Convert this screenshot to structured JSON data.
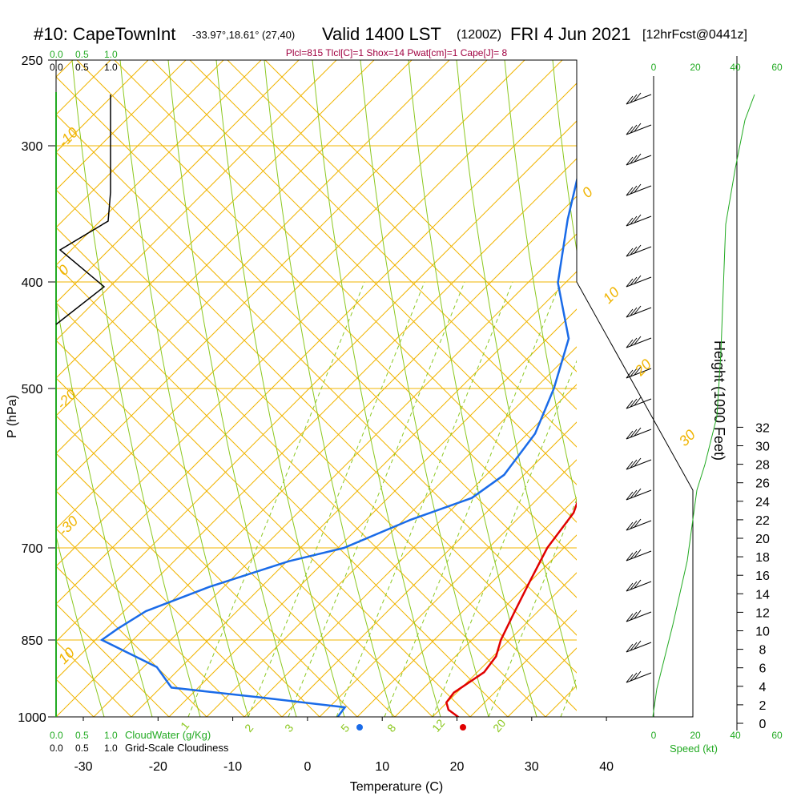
{
  "header": {
    "station": "#10: CapeTownInt",
    "coords": "-33.97°,18.61° (27,40)",
    "valid": "Valid 1400 LST",
    "utc": "(1200Z)",
    "date": "FRI 4 Jun 2021",
    "forecast": "[12hrFcst@0441z]",
    "indices": "Plcl=815 Tlcl[C]=1 Shox=14 Pwat[cm]=1 Cape[J]= 8"
  },
  "colors": {
    "isobar": "#f0b400",
    "dry_adiabat": "#8cc820",
    "mixing_ratio": "#8cc820",
    "temperature": "#e00000",
    "dewpoint": "#1a6be8",
    "green_text": "#22aa22",
    "maroon_text": "#a00040"
  },
  "chart_data": {
    "type": "line",
    "xlabel": "Temperature (C)",
    "ylabel": "P (hPa)",
    "y2label": "Height (1000 Feet)",
    "x_ticks": [
      "-30",
      "-20",
      "-10",
      "0",
      "10",
      "20",
      "30",
      "40"
    ],
    "p_ticks": [
      "250",
      "300",
      "400",
      "500",
      "700",
      "850",
      "1000"
    ],
    "height_ticks": [
      "0",
      "2",
      "4",
      "6",
      "8",
      "10",
      "12",
      "14",
      "16",
      "18",
      "20",
      "22",
      "24",
      "26",
      "28",
      "30",
      "32"
    ],
    "top_scale_left_green": [
      "0.0",
      "0.5",
      "1.0"
    ],
    "top_scale_left_black": [
      "0.0",
      "0.5",
      "1.0"
    ],
    "top_scale_right": [
      "0",
      "20",
      "40",
      "60"
    ],
    "bottom_scale_right": [
      "0",
      "20",
      "40",
      "60"
    ],
    "bottom_left_green": [
      "0.0",
      "0.5",
      "1.0"
    ],
    "bottom_left_green_label": "CloudWater (g/Kg)",
    "bottom_left_black": [
      "0.0",
      "0.5",
      "1.0"
    ],
    "bottom_left_black_label": "Grid-Scale Cloudiness",
    "speed_label": "Speed (kt)",
    "temp_line_labels": [
      "0",
      "10",
      "20",
      "30",
      "-10",
      "-20",
      "-30",
      "10",
      "0"
    ],
    "mixing_ratio_labels": [
      "1",
      "2",
      "3",
      "5",
      "8",
      "12",
      "20"
    ],
    "series": [
      {
        "name": "Temperature",
        "points": [
          [
            1020,
            21
          ],
          [
            1000,
            20
          ],
          [
            985,
            18
          ],
          [
            970,
            17
          ],
          [
            950,
            17
          ],
          [
            930,
            18
          ],
          [
            910,
            19
          ],
          [
            880,
            19
          ],
          [
            850,
            18
          ],
          [
            800,
            17
          ],
          [
            750,
            16
          ],
          [
            700,
            15
          ],
          [
            650,
            15
          ],
          [
            600,
            13
          ],
          [
            550,
            10
          ],
          [
            500,
            7
          ],
          [
            450,
            2
          ],
          [
            400,
            -3
          ],
          [
            350,
            -9
          ],
          [
            300,
            -16
          ],
          [
            270,
            -21
          ]
        ]
      },
      {
        "name": "Dewpoint",
        "points": [
          [
            1020,
            5
          ],
          [
            1000,
            4
          ],
          [
            980,
            4
          ],
          [
            960,
            -8
          ],
          [
            940,
            -21
          ],
          [
            900,
            -25
          ],
          [
            850,
            -35
          ],
          [
            830,
            -34
          ],
          [
            800,
            -32
          ],
          [
            760,
            -26
          ],
          [
            720,
            -18
          ],
          [
            700,
            -12
          ],
          [
            660,
            -6
          ],
          [
            630,
            0
          ],
          [
            600,
            2
          ],
          [
            550,
            2
          ],
          [
            500,
            0
          ],
          [
            450,
            -3
          ],
          [
            400,
            -10
          ],
          [
            350,
            -15
          ],
          [
            300,
            -20
          ],
          [
            270,
            -22
          ]
        ]
      }
    ]
  }
}
